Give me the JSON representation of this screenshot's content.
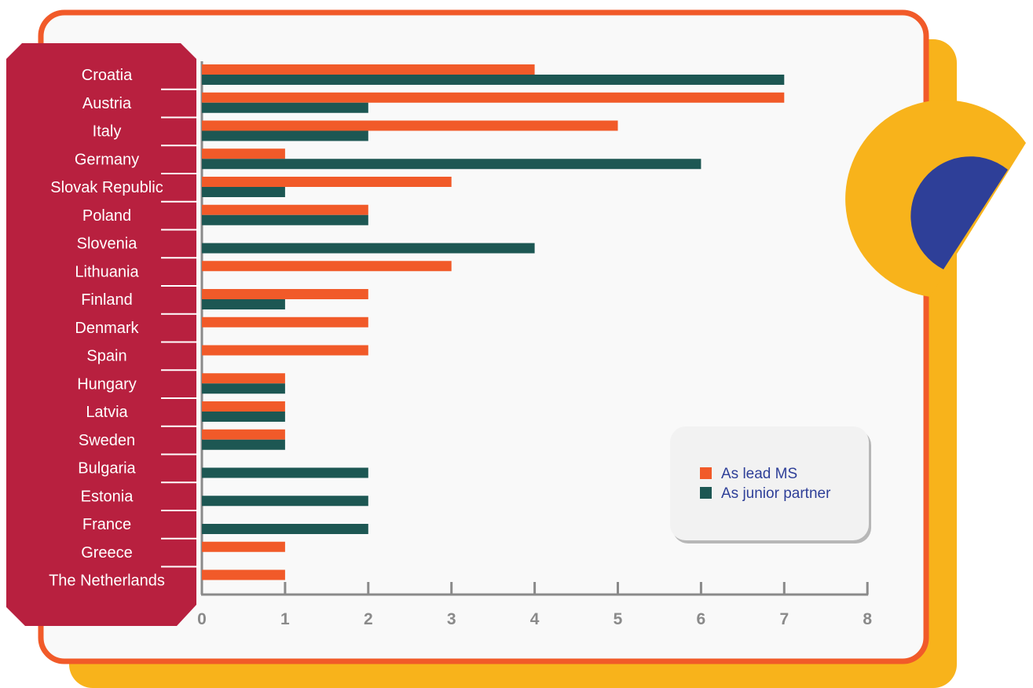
{
  "colors": {
    "lead": "#f15a29",
    "junior": "#1d5753",
    "frame": "#f15a29",
    "yellow": "#f8b31b",
    "label_panel": "#b8203f",
    "navy": "#2e3f98",
    "legend_bg": "#f2f2f2",
    "axis": "#8a8a8a"
  },
  "chart_data": {
    "type": "bar",
    "orientation": "horizontal",
    "categories": [
      "Croatia",
      "Austria",
      "Italy",
      "Germany",
      "Slovak Republic",
      "Poland",
      "Slovenia",
      "Lithuania",
      "Finland",
      "Denmark",
      "Spain",
      "Hungary",
      "Latvia",
      "Sweden",
      "Bulgaria",
      "Estonia",
      "France",
      "Greece",
      "The Netherlands"
    ],
    "series": [
      {
        "name": "As lead MS",
        "color": "#f15a29",
        "values": [
          4,
          7,
          5,
          1,
          3,
          2,
          0,
          3,
          2,
          2,
          2,
          1,
          1,
          1,
          0,
          0,
          0,
          1,
          1
        ]
      },
      {
        "name": "As junior partner",
        "color": "#1d5753",
        "values": [
          7,
          2,
          2,
          6,
          1,
          2,
          4,
          0,
          1,
          0,
          0,
          1,
          1,
          1,
          2,
          2,
          2,
          0,
          0
        ]
      }
    ],
    "xlim": [
      0,
      8
    ],
    "xticks": [
      "0",
      "1",
      "2",
      "3",
      "4",
      "5",
      "6",
      "7",
      "8"
    ],
    "legend_position": "bottom-right",
    "grid": false,
    "title": "",
    "xlabel": "",
    "ylabel": ""
  }
}
